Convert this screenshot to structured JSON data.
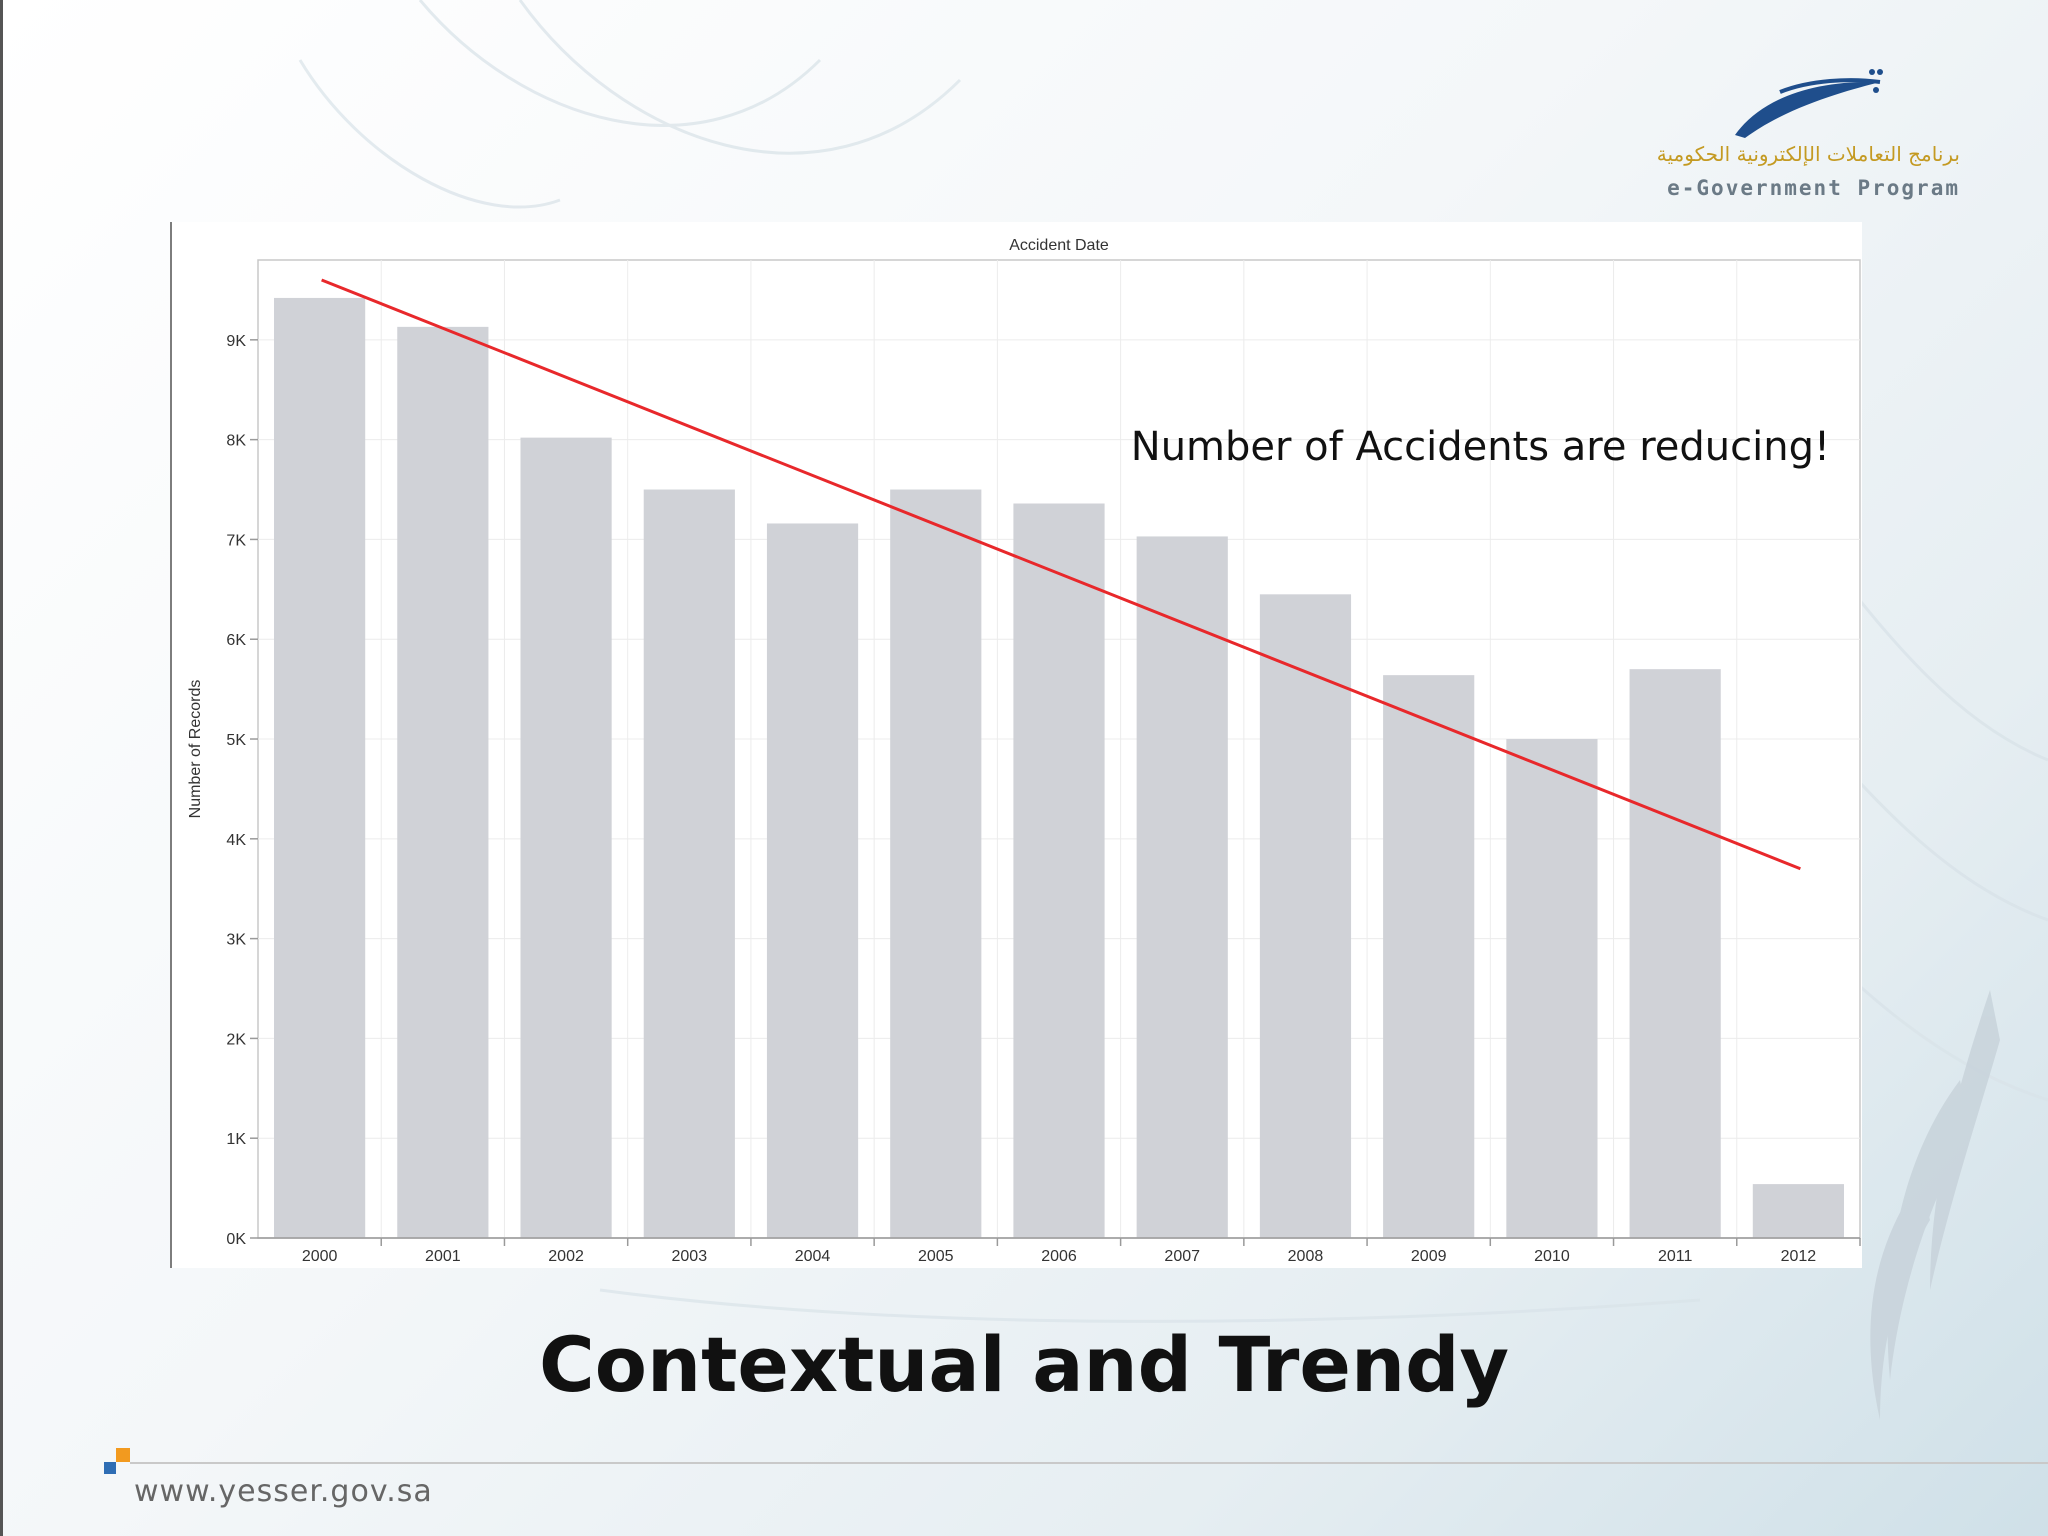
{
  "slide": {
    "title": "Contextual and Trendy",
    "footer_url": "www.yesser.gov.sa",
    "logo": {
      "arabic_text": "برنامج التعاملات الإلكترونية الحكومية",
      "english_text": "e-Government Program"
    }
  },
  "colors": {
    "bar": "#d0d2d7",
    "trend_line": "#e8282b",
    "grid": "#ececec",
    "axis": "#9a9a9a",
    "logo_blue": "#1f4e8c",
    "logo_gold": "#c49a22"
  },
  "chart_data": {
    "type": "bar",
    "title": "Accident Date",
    "xlabel": "",
    "ylabel": "Number of Records",
    "categories": [
      "2000",
      "2001",
      "2002",
      "2003",
      "2004",
      "2005",
      "2006",
      "2007",
      "2008",
      "2009",
      "2010",
      "2011",
      "2012"
    ],
    "values": [
      9420,
      9130,
      8020,
      7500,
      7160,
      7500,
      7360,
      7030,
      6450,
      5640,
      5000,
      5700,
      540
    ],
    "ylim": [
      0,
      9800
    ],
    "yticks": [
      0,
      1000,
      2000,
      3000,
      4000,
      5000,
      6000,
      7000,
      8000,
      9000
    ],
    "ytick_labels": [
      "0K",
      "1K",
      "2K",
      "3K",
      "4K",
      "5K",
      "6K",
      "7K",
      "8K",
      "9K"
    ],
    "grid": true,
    "trend_line": {
      "x": [
        "2000",
        "2012"
      ],
      "y": [
        9600,
        3700
      ]
    },
    "annotation": "Number of Accidents are reducing!"
  }
}
